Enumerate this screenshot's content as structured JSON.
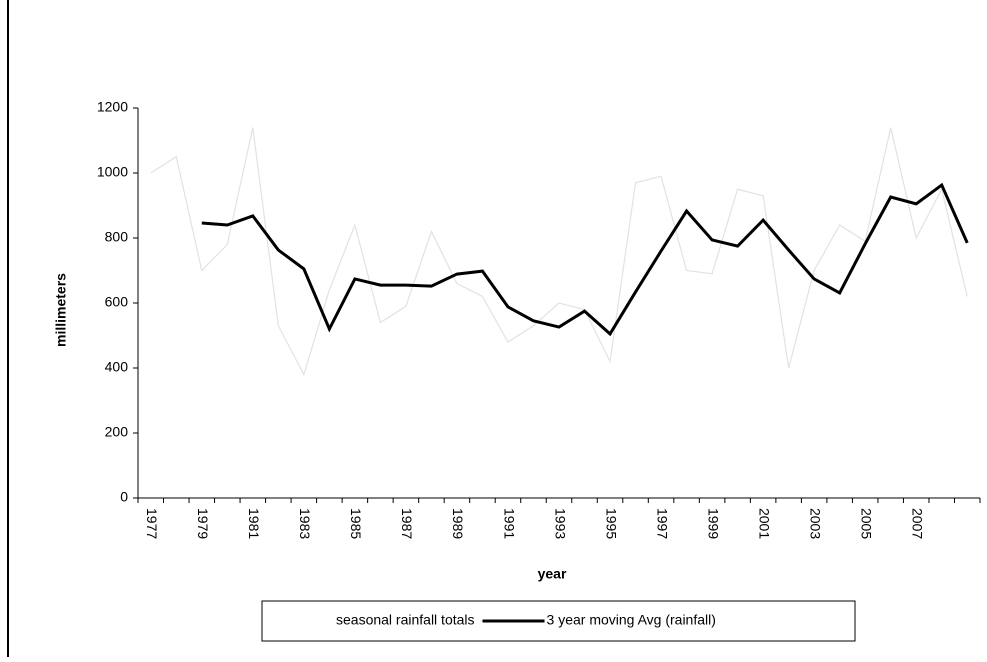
{
  "chart_data": {
    "type": "line",
    "x_label": "year",
    "y_label": "millimeters",
    "categories": [
      "1977",
      null,
      "1979",
      null,
      "1981",
      null,
      "1983",
      null,
      "1985",
      null,
      "1987",
      null,
      "1989",
      null,
      "1991",
      null,
      "1993",
      null,
      "1995",
      null,
      "1997",
      null,
      "1999",
      null,
      "2001",
      null,
      "2003",
      null,
      "2005",
      null,
      "2007",
      null,
      null
    ],
    "series": [
      {
        "name": "seasonal rainfall totals",
        "color": "#e2e2e2",
        "values": [
          1000,
          1050,
          700,
          780,
          1140,
          530,
          380,
          640,
          840,
          540,
          590,
          820,
          660,
          620,
          480,
          530,
          600,
          580,
          420,
          970,
          990,
          700,
          690,
          950,
          930,
          400,
          700,
          840,
          790,
          1140,
          800,
          950,
          620
        ]
      },
      {
        "name": "3 year moving Avg (rainfall)",
        "color": "#000000",
        "values": [
          null,
          null,
          846,
          840,
          868,
          763,
          705,
          520,
          674,
          655,
          655,
          652,
          689,
          698,
          588,
          545,
          526,
          575,
          505,
          634,
          760,
          883,
          794,
          775,
          855,
          763,
          674,
          631,
          782,
          926,
          905,
          963,
          785
        ]
      }
    ],
    "ylim": [
      0,
      1200
    ],
    "yticks": [
      0,
      200,
      400,
      600,
      800,
      1000,
      1200
    ],
    "grid": false,
    "legend": "bottom"
  }
}
